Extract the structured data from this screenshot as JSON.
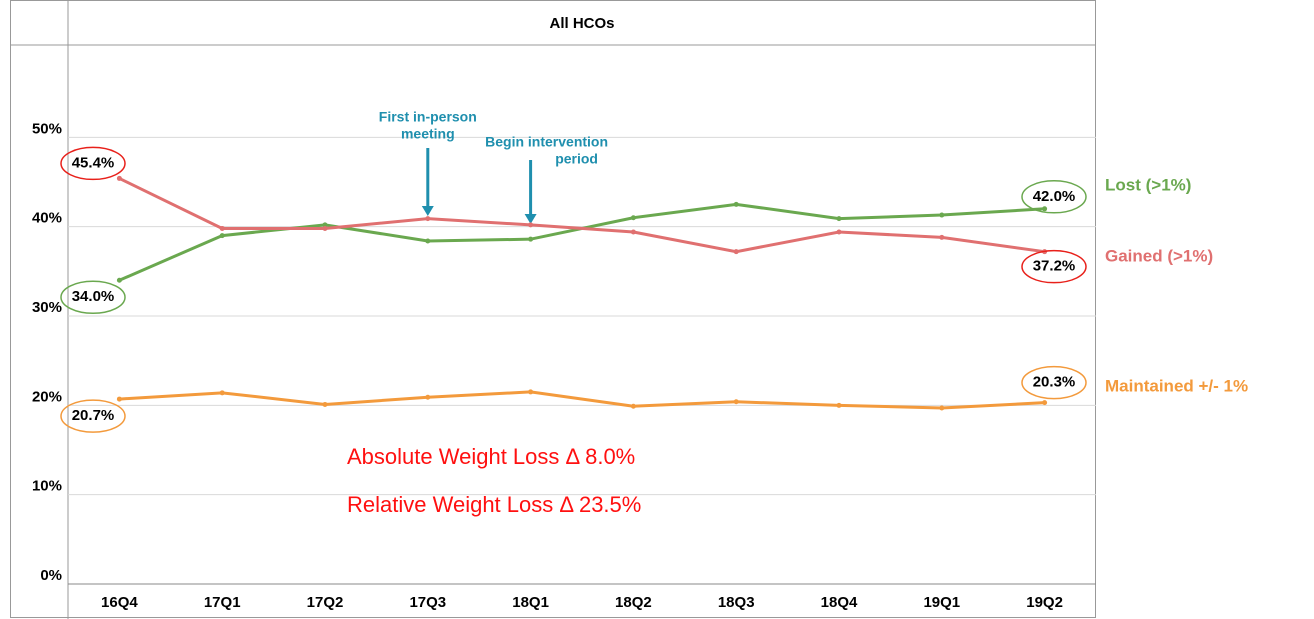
{
  "chart_data": {
    "type": "line",
    "title": "All HCOs",
    "categories": [
      "16Q4",
      "17Q1",
      "17Q2",
      "17Q3",
      "18Q1",
      "18Q2",
      "18Q3",
      "18Q4",
      "19Q1",
      "19Q2"
    ],
    "series": [
      {
        "name": "Lost (>1%)",
        "color": "#6aa84f",
        "values": [
          34.0,
          39.0,
          40.2,
          38.4,
          38.6,
          41.0,
          42.5,
          40.9,
          41.3,
          42.0
        ],
        "value_labels": [
          "34.0%",
          null,
          null,
          null,
          null,
          null,
          null,
          null,
          null,
          "42.0%"
        ]
      },
      {
        "name": "Gained (>1%)",
        "color": "#e07070",
        "values": [
          45.4,
          39.8,
          39.8,
          40.9,
          40.2,
          39.4,
          37.2,
          39.4,
          38.8,
          37.2
        ],
        "value_labels": [
          "45.4%",
          null,
          null,
          null,
          null,
          null,
          null,
          null,
          null,
          "37.2%"
        ]
      },
      {
        "name": "Maintained +/- 1%",
        "color": "#f39a3c",
        "values": [
          20.7,
          21.4,
          20.1,
          20.9,
          21.5,
          19.9,
          20.4,
          20.0,
          19.7,
          20.3
        ],
        "value_labels": [
          "20.7%",
          null,
          null,
          null,
          null,
          null,
          null,
          null,
          null,
          "20.3%"
        ]
      }
    ],
    "ylim": [
      0,
      60
    ],
    "yticks": [
      {
        "value": 0,
        "label": "0%"
      },
      {
        "value": 10,
        "label": "10%"
      },
      {
        "value": 20,
        "label": "20%"
      },
      {
        "value": 30,
        "label": "30%"
      },
      {
        "value": 40,
        "label": "40%"
      },
      {
        "value": 50,
        "label": "50%"
      }
    ],
    "grid": true,
    "annotations": [
      {
        "lines": [
          "First in-person",
          "meeting"
        ]
      },
      {
        "lines": [
          "Begin intervention",
          "period"
        ]
      }
    ],
    "notes": [
      "Absolute Weight Loss Δ 8.0%",
      "Relative Weight Loss Δ 23.5%"
    ]
  }
}
